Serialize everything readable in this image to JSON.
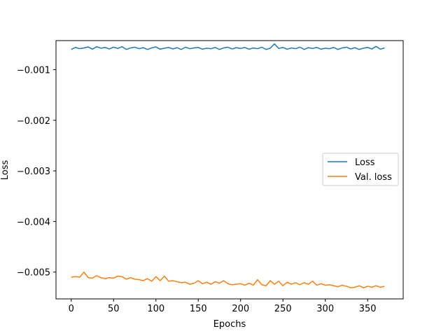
{
  "chart_data": {
    "type": "line",
    "xlabel": "Epochs",
    "ylabel": "Loss",
    "xlim": [
      -18,
      392
    ],
    "ylim": [
      -0.00553,
      -0.000425
    ],
    "xticks": [
      0,
      50,
      100,
      150,
      200,
      250,
      300,
      350
    ],
    "xtick_labels": [
      "0",
      "50",
      "100",
      "150",
      "200",
      "250",
      "300",
      "350"
    ],
    "yticks": [
      -0.001,
      -0.002,
      -0.003,
      -0.004,
      -0.005
    ],
    "ytick_labels": [
      "−0.001",
      "−0.002",
      "−0.003",
      "−0.004",
      "−0.005"
    ],
    "legend_position": "center-right",
    "grid": false,
    "x_points": [
      0,
      5,
      10,
      15,
      20,
      25,
      30,
      35,
      40,
      45,
      50,
      55,
      60,
      65,
      70,
      75,
      80,
      85,
      90,
      95,
      100,
      105,
      110,
      115,
      120,
      125,
      130,
      135,
      140,
      145,
      150,
      155,
      160,
      165,
      170,
      175,
      180,
      185,
      190,
      195,
      200,
      205,
      210,
      215,
      220,
      225,
      230,
      235,
      240,
      245,
      250,
      255,
      260,
      265,
      270,
      275,
      280,
      285,
      290,
      295,
      300,
      305,
      310,
      315,
      320,
      325,
      330,
      335,
      340,
      345,
      350,
      355,
      360,
      365,
      370
    ],
    "series": [
      {
        "name": "Loss",
        "color": "#1f77b4",
        "values": [
          -0.0006,
          -0.00056,
          -0.000585,
          -0.00057,
          -0.00055,
          -0.000595,
          -0.000545,
          -0.000575,
          -0.00056,
          -0.00059,
          -0.000555,
          -0.00058,
          -0.000545,
          -0.0006,
          -0.00057,
          -0.000555,
          -0.000585,
          -0.000565,
          -0.0006,
          -0.00057,
          -0.00055,
          -0.000595,
          -0.000575,
          -0.00056,
          -0.00059,
          -0.000565,
          -0.0006,
          -0.000555,
          -0.000585,
          -0.00057,
          -0.00056,
          -0.000595,
          -0.000575,
          -0.000585,
          -0.00056,
          -0.0006,
          -0.00057,
          -0.000555,
          -0.00059,
          -0.000565,
          -0.00058,
          -0.00056,
          -0.000595,
          -0.00057,
          -0.000585,
          -0.000555,
          -0.0006,
          -0.000575,
          -0.00049,
          -0.00058,
          -0.00056,
          -0.000595,
          -0.00057,
          -0.000585,
          -0.000555,
          -0.0006,
          -0.000565,
          -0.00058,
          -0.00056,
          -0.000595,
          -0.000575,
          -0.000585,
          -0.00056,
          -0.0006,
          -0.00057,
          -0.000555,
          -0.00059,
          -0.000565,
          -0.0006,
          -0.000575,
          -0.00056,
          -0.00059,
          -0.00054,
          -0.000595,
          -0.00057
        ]
      },
      {
        "name": "Val. loss",
        "color": "#ff7f0e",
        "values": [
          -0.0051,
          -0.00509,
          -0.0051,
          -0.005,
          -0.00511,
          -0.00512,
          -0.00507,
          -0.00511,
          -0.00513,
          -0.00511,
          -0.00512,
          -0.00508,
          -0.00509,
          -0.00514,
          -0.00511,
          -0.00514,
          -0.00515,
          -0.00517,
          -0.00513,
          -0.00518,
          -0.00509,
          -0.00517,
          -0.00508,
          -0.00518,
          -0.00517,
          -0.00519,
          -0.00521,
          -0.0052,
          -0.00524,
          -0.00522,
          -0.00517,
          -0.00523,
          -0.0052,
          -0.00524,
          -0.00519,
          -0.00522,
          -0.00517,
          -0.00523,
          -0.00525,
          -0.00524,
          -0.00523,
          -0.00526,
          -0.00522,
          -0.00526,
          -0.00515,
          -0.00525,
          -0.00527,
          -0.00517,
          -0.00524,
          -0.00518,
          -0.00527,
          -0.0052,
          -0.00524,
          -0.00521,
          -0.00525,
          -0.00521,
          -0.00524,
          -0.00518,
          -0.00526,
          -0.00523,
          -0.00526,
          -0.00525,
          -0.00527,
          -0.00529,
          -0.00526,
          -0.00528,
          -0.00531,
          -0.0053,
          -0.00527,
          -0.00531,
          -0.00528,
          -0.0053,
          -0.00527,
          -0.0053,
          -0.00528
        ]
      }
    ]
  }
}
